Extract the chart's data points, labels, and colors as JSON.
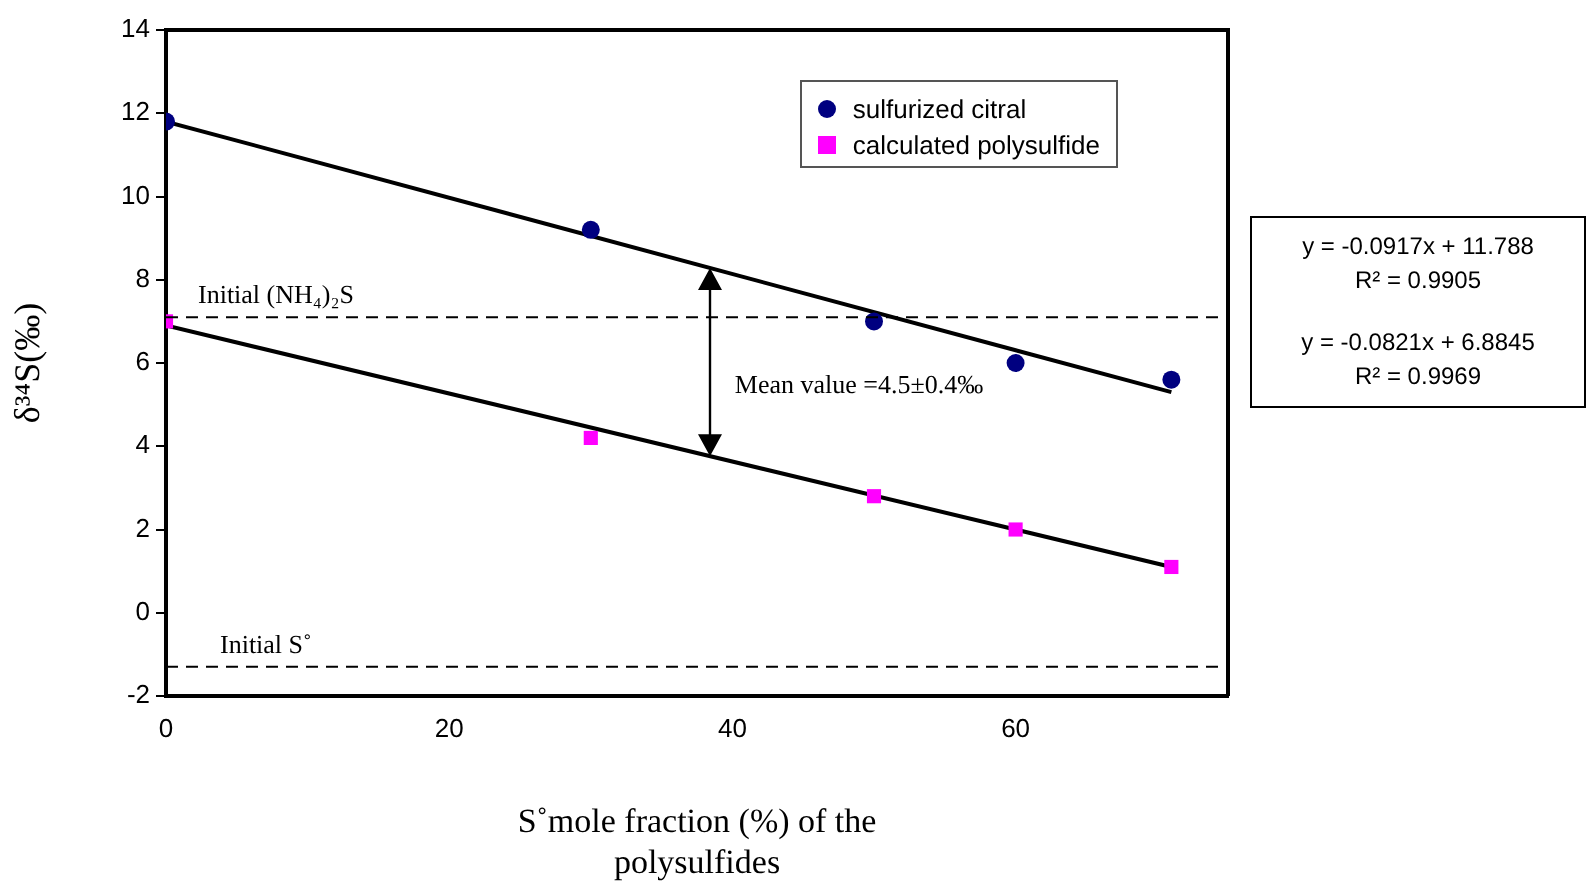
{
  "chart_data": {
    "type": "scatter",
    "xlabel": "S˚mole fraction (%) of the polysulfides",
    "ylabel": "δ³⁴S(‰)",
    "xlim": [
      0,
      75
    ],
    "xticks": [
      0,
      20,
      40,
      60
    ],
    "ylim": [
      -2,
      14
    ],
    "yticks": [
      -2,
      0,
      2,
      4,
      6,
      8,
      10,
      12,
      14
    ],
    "grid": false,
    "legend": "top right",
    "series": [
      {
        "name": "sulfurized citral",
        "marker": "circle",
        "color": "#000080",
        "x": [
          0,
          30,
          50,
          60,
          71
        ],
        "values": [
          11.8,
          9.2,
          7.0,
          6.0,
          5.6
        ]
      },
      {
        "name": "calculated polysulfide",
        "marker": "square",
        "color": "#ff00ff",
        "x": [
          0,
          30,
          50,
          60,
          71
        ],
        "values": [
          7.0,
          4.2,
          2.8,
          2.0,
          1.1
        ]
      },
      {
        "type": "line",
        "marker": "none",
        "color": "#000000",
        "x": [
          0,
          71
        ],
        "values": [
          11.8,
          5.3
        ]
      },
      {
        "type": "line",
        "marker": "none",
        "color": "#000000",
        "x": [
          0,
          71
        ],
        "values": [
          6.9,
          1.1
        ]
      }
    ],
    "ref_lines": [
      {
        "axis": "y",
        "value": 7.1,
        "label": "Initial (NH₄)₂S",
        "line_style": "dashed",
        "color": "#000000"
      },
      {
        "axis": "y",
        "value": -1.3,
        "label": "Initial S˚",
        "line_style": "dashed",
        "color": "#000000"
      }
    ],
    "annotations": [
      "Mean value =4.5±0.4‰",
      "y = -0.0917x + 11.788",
      "R² = 0.9905",
      "y = -0.0821x + 6.8845",
      "R² = 0.9969"
    ]
  }
}
